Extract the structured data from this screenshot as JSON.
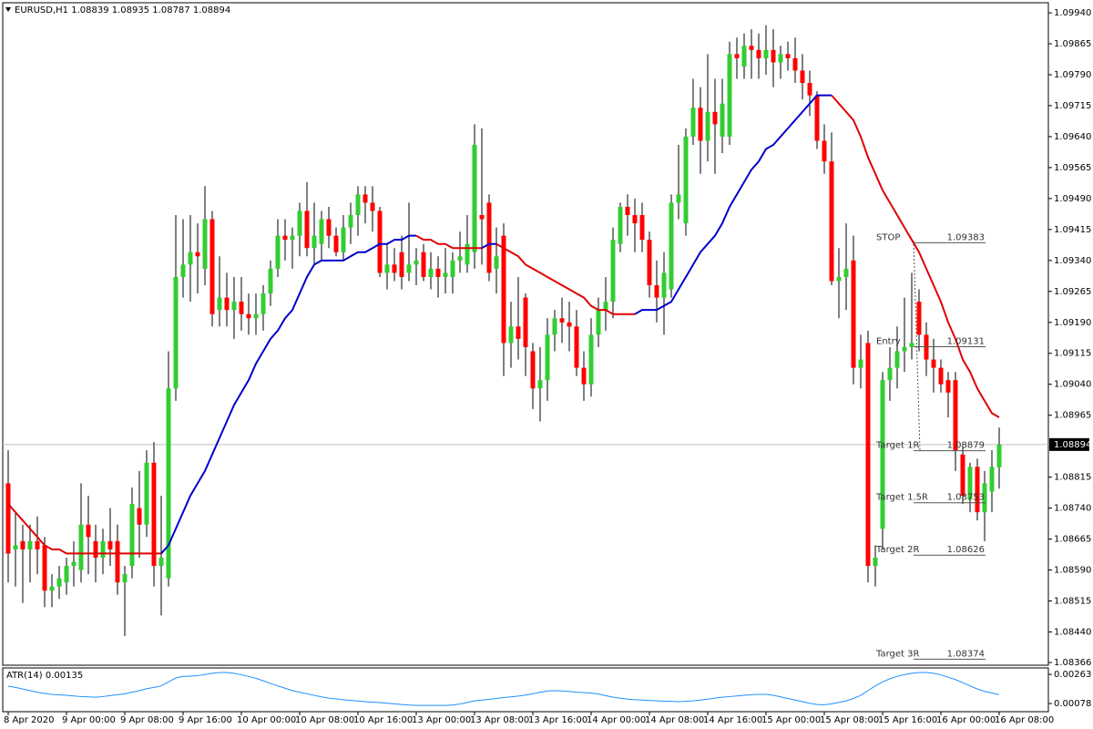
{
  "chart_data": {
    "type": "candlestick",
    "symbol": "EURUSD,H1",
    "categories": [
      "8 Apr 2020",
      null,
      null,
      null,
      null,
      null,
      null,
      null,
      "9 Apr 00:00",
      null,
      null,
      null,
      null,
      null,
      null,
      null,
      "9 Apr 08:00",
      null,
      null,
      null,
      null,
      null,
      null,
      null,
      "9 Apr 16:00",
      null,
      null,
      null,
      null,
      null,
      null,
      null,
      "10 Apr 00:00",
      null,
      null,
      null,
      null,
      null,
      null,
      null,
      "10 Apr 08:00",
      null,
      null,
      null,
      null,
      null,
      null,
      null,
      "10 Apr 16:00",
      null,
      null,
      null,
      null,
      null,
      null,
      null,
      "13 Apr 00:00",
      null,
      null,
      null,
      null,
      null,
      null,
      null,
      "13 Apr 08:00",
      null,
      null,
      null,
      null,
      null,
      null,
      null,
      "13 Apr 16:00",
      null,
      null,
      null,
      null,
      null,
      null,
      null,
      "14 Apr 00:00",
      null,
      null,
      null,
      null,
      null,
      null,
      null,
      "14 Apr 08:00",
      null,
      null,
      null,
      null,
      null,
      null,
      null,
      "14 Apr 16:00",
      null,
      null,
      null,
      null,
      null,
      null,
      null,
      "15 Apr 00:00",
      null,
      null,
      null,
      null,
      null,
      null,
      null,
      "15 Apr 08:00",
      null,
      null,
      null,
      null,
      null,
      null,
      null,
      "15 Apr 16:00",
      null,
      null,
      null,
      null,
      null,
      null,
      null,
      "16 Apr 00:00",
      null,
      null,
      null,
      null,
      null,
      null,
      null,
      "16 Apr 08:00"
    ],
    "open": [
      1.088,
      1.0864,
      1.0866,
      1.0864,
      1.0866,
      1.0865,
      1.0854,
      1.0855,
      1.0856,
      1.086,
      1.0859,
      1.087,
      1.0866,
      1.0862,
      1.0866,
      1.0866,
      1.0856,
      1.086,
      1.0874,
      1.087,
      1.0885,
      1.086,
      1.0857,
      1.0903,
      1.093,
      1.0933,
      1.0936,
      1.0932,
      1.0944,
      1.0922,
      1.0925,
      1.0922,
      1.0924,
      1.0921,
      1.092,
      1.0921,
      1.0926,
      1.0932,
      1.094,
      1.0939,
      1.094,
      1.0946,
      1.0937,
      1.0938,
      1.0944,
      1.094,
      1.0936,
      1.0942,
      1.0945,
      1.095,
      1.0948,
      1.0946,
      1.0931,
      1.0933,
      1.0936,
      1.0931,
      1.0933,
      1.0936,
      1.093,
      1.0932,
      1.093,
      1.093,
      1.0934,
      1.0933,
      1.0936,
      1.0945,
      1.0948,
      1.0932,
      1.094,
      1.0914,
      1.0918,
      1.0925,
      1.0912,
      1.0903,
      1.0905,
      1.0916,
      1.092,
      1.0919,
      1.0918,
      1.0908,
      1.0904,
      1.0916,
      1.0922,
      1.0924,
      1.0938,
      1.0947,
      1.0945,
      1.0945,
      1.0939,
      1.0928,
      1.0925,
      1.0927,
      1.0948,
      1.0943,
      1.0964,
      1.0971,
      1.0963,
      1.097,
      1.0964,
      1.0964,
      1.0984,
      1.0981,
      1.0986,
      1.0985,
      1.0983,
      1.0985,
      1.0982,
      1.0984,
      1.0983,
      1.098,
      1.0977,
      1.0974,
      1.0963,
      1.0958,
      1.0929,
      1.093,
      1.0934,
      1.0908,
      1.0914,
      1.086,
      1.0869,
      1.0905,
      1.0908,
      1.0912,
      1.0913,
      1.0924,
      1.0916,
      1.091,
      1.0908,
      1.0905,
      1.0905,
      1.0887,
      1.0876,
      1.0884,
      1.0873,
      1.0878,
      1.08839
    ],
    "high": [
      1.0888,
      1.0873,
      1.087,
      1.087,
      1.0872,
      1.0867,
      1.0858,
      1.086,
      1.0862,
      1.0866,
      1.088,
      1.0877,
      1.087,
      1.0869,
      1.0874,
      1.087,
      1.086,
      1.0879,
      1.0883,
      1.0888,
      1.089,
      1.0877,
      1.0912,
      1.0945,
      1.0944,
      1.0945,
      1.0943,
      1.0952,
      1.0946,
      1.0935,
      1.0931,
      1.093,
      1.093,
      1.0926,
      1.0926,
      1.0928,
      1.0934,
      1.0944,
      1.0944,
      1.0942,
      1.0948,
      1.0953,
      1.0948,
      1.0946,
      1.0947,
      1.0942,
      1.0945,
      1.0948,
      1.0952,
      1.0952,
      1.0952,
      1.0947,
      1.0938,
      1.0937,
      1.094,
      1.0948,
      1.0937,
      1.0938,
      1.0936,
      1.0935,
      1.0937,
      1.0936,
      1.0941,
      1.0945,
      1.0967,
      1.0966,
      1.095,
      1.0942,
      1.0943,
      1.0924,
      1.093,
      1.0926,
      1.0914,
      1.0913,
      1.092,
      1.0922,
      1.0925,
      1.0924,
      1.0922,
      1.0912,
      1.092,
      1.0925,
      1.093,
      1.0942,
      1.0948,
      1.095,
      1.0949,
      1.0948,
      1.0941,
      1.0934,
      1.0936,
      1.095,
      1.0962,
      1.0966,
      1.0978,
      1.0976,
      1.0984,
      1.0978,
      1.0978,
      1.0987,
      1.0988,
      1.0989,
      1.099,
      1.0989,
      1.0991,
      1.099,
      1.0986,
      1.0987,
      1.0988,
      1.0984,
      1.098,
      1.0975,
      1.0967,
      1.0965,
      1.0937,
      1.0943,
      1.094,
      1.0916,
      1.0917,
      1.0865,
      1.0907,
      1.0913,
      1.0918,
      1.0925,
      1.0931,
      1.0927,
      1.0919,
      1.0915,
      1.091,
      1.0907,
      1.0907,
      1.0889,
      1.0885,
      1.0886,
      1.0883,
      1.0888,
      1.08935
    ],
    "low": [
      1.0856,
      1.0855,
      1.0851,
      1.0856,
      1.0858,
      1.085,
      1.085,
      1.0852,
      1.0853,
      1.0855,
      1.0856,
      1.0858,
      1.0856,
      1.0858,
      1.086,
      1.0853,
      1.0843,
      1.0857,
      1.0862,
      1.0867,
      1.0855,
      1.0848,
      1.0855,
      1.09,
      1.0925,
      1.0924,
      1.0926,
      1.0928,
      1.0918,
      1.0918,
      1.0918,
      1.0915,
      1.0917,
      1.0916,
      1.0916,
      1.0917,
      1.0923,
      1.093,
      1.0934,
      1.0932,
      1.0935,
      1.0935,
      1.0933,
      1.0934,
      1.0937,
      1.0935,
      1.0934,
      1.0938,
      1.094,
      1.0943,
      1.0941,
      1.093,
      1.0927,
      1.0929,
      1.0927,
      1.0929,
      1.0928,
      1.0929,
      1.0927,
      1.0925,
      1.0926,
      1.0926,
      1.0931,
      1.0931,
      1.0932,
      1.0933,
      1.0929,
      1.0926,
      1.0906,
      1.0908,
      1.091,
      1.0906,
      1.0898,
      1.0895,
      1.09,
      1.0912,
      1.0914,
      1.0912,
      1.0906,
      1.09,
      1.0901,
      1.0913,
      1.0917,
      1.092,
      1.0936,
      1.094,
      1.0936,
      1.0936,
      1.0925,
      1.0919,
      1.0916,
      1.0925,
      1.0944,
      1.094,
      1.0962,
      1.0955,
      1.0958,
      1.0955,
      1.096,
      1.0962,
      1.0978,
      1.0978,
      1.0978,
      1.0978,
      1.0979,
      1.0976,
      1.0978,
      1.098,
      1.0977,
      1.0973,
      1.0969,
      1.0961,
      1.0955,
      1.0928,
      1.092,
      1.0922,
      1.0904,
      1.0903,
      1.0856,
      1.0855,
      1.0864,
      1.09,
      1.0903,
      1.0907,
      1.091,
      1.0912,
      1.0906,
      1.0902,
      1.0902,
      1.0896,
      1.0883,
      1.0875,
      1.0873,
      1.0871,
      1.0866,
      1.0873,
      1.08787
    ],
    "close": [
      1.0863,
      1.0865,
      1.0864,
      1.0866,
      1.0864,
      1.0854,
      1.0855,
      1.0857,
      1.086,
      1.0861,
      1.087,
      1.0867,
      1.0862,
      1.0866,
      1.0864,
      1.0856,
      1.0858,
      1.0875,
      1.087,
      1.0885,
      1.086,
      1.0862,
      1.0903,
      1.093,
      1.0933,
      1.0936,
      1.0935,
      1.0944,
      1.0921,
      1.0925,
      1.0922,
      1.0924,
      1.0921,
      1.092,
      1.0921,
      1.0926,
      1.0932,
      1.094,
      1.0939,
      1.094,
      1.0946,
      1.0937,
      1.094,
      1.0944,
      1.094,
      1.0936,
      1.0942,
      1.0945,
      1.095,
      1.0948,
      1.0946,
      1.0931,
      1.0933,
      1.0931,
      1.093,
      1.0933,
      1.0934,
      1.093,
      1.0932,
      1.093,
      1.0931,
      1.0934,
      1.0935,
      1.0938,
      1.0962,
      1.0944,
      1.0931,
      1.0935,
      1.0914,
      1.0918,
      1.0915,
      1.0913,
      1.0903,
      1.0905,
      1.0916,
      1.092,
      1.0919,
      1.0918,
      1.0908,
      1.0904,
      1.0916,
      1.0922,
      1.0924,
      1.0939,
      1.0947,
      1.0945,
      1.0943,
      1.0939,
      1.0928,
      1.0925,
      1.0931,
      1.0948,
      1.095,
      1.0964,
      1.0971,
      1.0963,
      1.097,
      1.0967,
      1.0972,
      1.0984,
      1.0983,
      1.0986,
      1.0985,
      1.0983,
      1.0985,
      1.0982,
      1.0984,
      1.0983,
      1.098,
      1.0977,
      1.0974,
      1.0963,
      1.0958,
      1.0929,
      1.093,
      1.0932,
      1.0908,
      1.091,
      1.086,
      1.0862,
      1.0905,
      1.0908,
      1.0912,
      1.0913,
      1.0914,
      1.0916,
      1.091,
      1.0908,
      1.0904,
      1.0902,
      1.0888,
      1.0877,
      1.0884,
      1.0873,
      1.088,
      1.0884,
      1.08894
    ],
    "colors": {
      "up": "#32cd32",
      "down": "#ff0000",
      "wick": "#000000"
    },
    "ylim": [
      1.08366,
      1.0996
    ],
    "yticks": [
      {
        "value": 1.0994,
        "label": "1.09940"
      },
      1.09865,
      {
        "value": 1.0979,
        "label": "1.09790"
      },
      1.09715,
      {
        "value": 1.0964,
        "label": "1.09640"
      },
      1.09565,
      {
        "value": 1.0949,
        "label": "1.09490"
      },
      1.09415,
      {
        "value": 1.0934,
        "label": "1.09340"
      },
      1.09265,
      {
        "value": 1.0919,
        "label": "1.09190"
      },
      1.09115,
      {
        "value": 1.0904,
        "label": "1.09040"
      },
      1.08965,
      1.08815,
      {
        "value": 1.0874,
        "label": "1.08740"
      },
      1.08665,
      {
        "value": 1.0859,
        "label": "1.08590"
      },
      1.08515,
      {
        "value": 1.0844,
        "label": "1.08440"
      },
      1.08366
    ],
    "price_line_color": "#c0c0c0",
    "moving_average": {
      "up_color": "#0000cd",
      "down_color": "#e00000",
      "values": [
        1.0875,
        1.0873,
        1.0871,
        1.0869,
        1.0867,
        1.0865,
        1.0864,
        1.0864,
        1.0863,
        1.0863,
        1.0863,
        1.0863,
        1.0863,
        1.0863,
        1.0863,
        1.0863,
        1.0863,
        1.0863,
        1.0863,
        1.0863,
        1.0863,
        1.0863,
        1.0865,
        1.0869,
        1.0873,
        1.0877,
        1.088,
        1.0883,
        1.0887,
        1.0891,
        1.0895,
        1.0899,
        1.0902,
        1.0905,
        1.0909,
        1.0912,
        1.0915,
        1.0917,
        1.092,
        1.0922,
        1.0926,
        1.093,
        1.0933,
        1.0934,
        1.0934,
        1.0934,
        1.0934,
        1.0935,
        1.0936,
        1.0936,
        1.0937,
        1.0938,
        1.0938,
        1.0939,
        1.0939,
        1.094,
        1.094,
        1.0939,
        1.0939,
        1.0938,
        1.0938,
        1.0937,
        1.0937,
        1.0937,
        1.0937,
        1.0937,
        1.0938,
        1.0938,
        1.0937,
        1.0936,
        1.0935,
        1.0933,
        1.0932,
        1.0931,
        1.093,
        1.0929,
        1.0928,
        1.0927,
        1.0926,
        1.0925,
        1.0923,
        1.0922,
        1.0922,
        1.0921,
        1.0921,
        1.0921,
        1.0921,
        1.0922,
        1.0922,
        1.0922,
        1.0923,
        1.0924,
        1.0927,
        1.093,
        1.0933,
        1.0936,
        1.0938,
        1.094,
        1.0943,
        1.0947,
        1.095,
        1.0953,
        1.0956,
        1.0958,
        1.0961,
        1.0962,
        1.0964,
        1.0966,
        1.0968,
        1.097,
        1.0972,
        1.0974,
        1.0974,
        1.0974,
        1.0972,
        1.097,
        1.0968,
        1.0964,
        1.0959,
        1.0955,
        1.0951,
        1.0948,
        1.0945,
        1.0942,
        1.0939,
        1.0936,
        1.0932,
        1.0928,
        1.0924,
        1.0919,
        1.0915,
        1.091,
        1.0907,
        1.0903,
        1.09,
        1.0897,
        1.0896
      ]
    },
    "levels": [
      {
        "label": "STOP",
        "value": 1.09383
      },
      {
        "label": "Entry",
        "value": 1.09131
      },
      {
        "label": "Target 1R",
        "value": 1.08879
      },
      {
        "label": "Target 1.5R",
        "value": 1.08753
      },
      {
        "label": "Target 2R",
        "value": 1.08626
      },
      {
        "label": "Target 3R",
        "value": 1.08374
      }
    ],
    "atr": {
      "name": "ATR(14)",
      "color": "#1e90ff",
      "ylim": [
        0.00032,
        0.00298
      ],
      "yticks": [
        0.00263,
        0.00078
      ],
      "values": [
        0.00188,
        0.0018,
        0.0017,
        0.0016,
        0.0015,
        0.00142,
        0.00136,
        0.00133,
        0.0013,
        0.00126,
        0.00122,
        0.0012,
        0.00118,
        0.00122,
        0.00128,
        0.00134,
        0.0014,
        0.0015,
        0.0016,
        0.00172,
        0.0018,
        0.0019,
        0.00215,
        0.0024,
        0.0025,
        0.00252,
        0.00255,
        0.00262,
        0.0027,
        0.00275,
        0.00275,
        0.0027,
        0.0026,
        0.0025,
        0.00238,
        0.00222,
        0.00205,
        0.0019,
        0.00175,
        0.0016,
        0.0015,
        0.0014,
        0.0013,
        0.0012,
        0.00112,
        0.00107,
        0.00102,
        0.00098,
        0.00094,
        0.0009,
        0.00087,
        0.00084,
        0.0008,
        0.00076,
        0.00072,
        0.00068,
        0.00066,
        0.00066,
        0.00066,
        0.00066,
        0.00066,
        0.00068,
        0.00075,
        0.00085,
        0.00095,
        0.001,
        0.00104,
        0.0011,
        0.00116,
        0.0012,
        0.00125,
        0.00132,
        0.0014,
        0.0015,
        0.00158,
        0.0016,
        0.00158,
        0.00155,
        0.0015,
        0.00147,
        0.00145,
        0.00138,
        0.00128,
        0.00118,
        0.00112,
        0.00106,
        0.00102,
        0.001,
        0.00098,
        0.00095,
        0.00093,
        0.00092,
        0.0009,
        0.00092,
        0.00095,
        0.001,
        0.00106,
        0.00112,
        0.00118,
        0.00122,
        0.00126,
        0.0013,
        0.00134,
        0.00136,
        0.00136,
        0.0013,
        0.0012,
        0.0011,
        0.001,
        0.0009,
        0.0008,
        0.00072,
        0.0007,
        0.00076,
        0.00085,
        0.00095,
        0.0011,
        0.0013,
        0.0016,
        0.0019,
        0.00215,
        0.00235,
        0.0025,
        0.00262,
        0.0027,
        0.00275,
        0.00275,
        0.0027,
        0.0026,
        0.00245,
        0.0023,
        0.0021,
        0.0019,
        0.0017,
        0.00155,
        0.00145,
        0.00135
      ]
    }
  }
}
